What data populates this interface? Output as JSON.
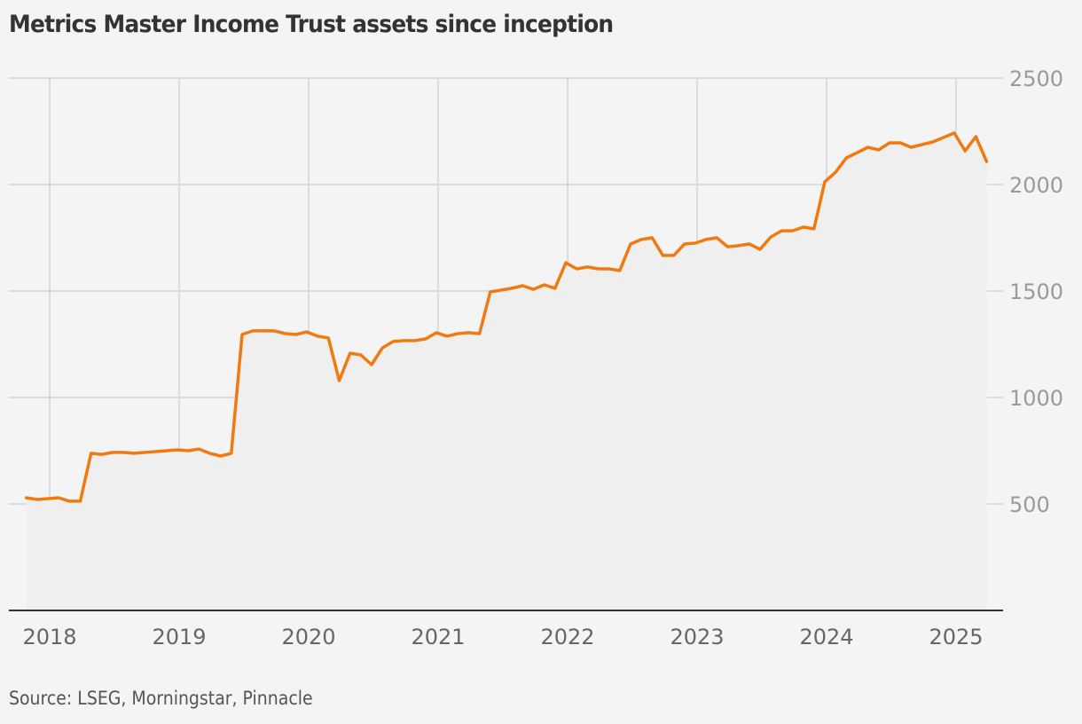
{
  "title": "Metrics Master Income Trust assets since inception",
  "source": "Source: LSEG, Morningstar, Pinnacle",
  "colors": {
    "line": "#f07a10",
    "background": "#f4f4f4",
    "area": "#efefef",
    "grid": "#dcdcdc",
    "axis": "#333333"
  },
  "chart_data": {
    "type": "line",
    "title": "Metrics Master Income Trust assets since inception",
    "xlabel": "",
    "ylabel": "",
    "ylim": [
      0,
      2500
    ],
    "yticks": [
      500,
      1000,
      1500,
      2000,
      2500
    ],
    "xticks": [
      "2018",
      "2019",
      "2020",
      "2021",
      "2022",
      "2023",
      "2024",
      "2025"
    ],
    "grid": true,
    "y_axis_position": "right",
    "area_fill": true,
    "series": [
      {
        "name": "Assets",
        "x": [
          "2017-11",
          "2017-12",
          "2018-01",
          "2018-02",
          "2018-03",
          "2018-04",
          "2018-05",
          "2018-06",
          "2018-07",
          "2018-08",
          "2018-09",
          "2018-10",
          "2018-11",
          "2018-12",
          "2019-01",
          "2019-02",
          "2019-03",
          "2019-04",
          "2019-05",
          "2019-06",
          "2019-07",
          "2019-08",
          "2019-09",
          "2019-10",
          "2019-11",
          "2019-12",
          "2020-01",
          "2020-02",
          "2020-03",
          "2020-04",
          "2020-05",
          "2020-06",
          "2020-07",
          "2020-08",
          "2020-09",
          "2020-10",
          "2020-11",
          "2020-12",
          "2021-01",
          "2021-02",
          "2021-03",
          "2021-04",
          "2021-05",
          "2021-06",
          "2021-07",
          "2021-08",
          "2021-09",
          "2021-10",
          "2021-11",
          "2021-12",
          "2022-01",
          "2022-02",
          "2022-03",
          "2022-04",
          "2022-05",
          "2022-06",
          "2022-07",
          "2022-08",
          "2022-09",
          "2022-10",
          "2022-11",
          "2022-12",
          "2023-01",
          "2023-02",
          "2023-03",
          "2023-04",
          "2023-05",
          "2023-06",
          "2023-07",
          "2023-08",
          "2023-09",
          "2023-10",
          "2023-11",
          "2023-12",
          "2024-01",
          "2024-02",
          "2024-03",
          "2024-04",
          "2024-05",
          "2024-06",
          "2024-07",
          "2024-08",
          "2024-09",
          "2024-10",
          "2024-11",
          "2024-12",
          "2025-01",
          "2025-02",
          "2025-03",
          "2025-04"
        ],
        "values": [
          529,
          521,
          525,
          529,
          513,
          513,
          738,
          733,
          742,
          742,
          738,
          742,
          746,
          750,
          754,
          750,
          758,
          738,
          725,
          738,
          1296,
          1313,
          1313,
          1313,
          1300,
          1296,
          1308,
          1288,
          1279,
          1079,
          1208,
          1200,
          1154,
          1233,
          1263,
          1267,
          1267,
          1275,
          1304,
          1288,
          1300,
          1304,
          1300,
          1496,
          1504,
          1513,
          1525,
          1508,
          1529,
          1513,
          1633,
          1604,
          1613,
          1604,
          1604,
          1596,
          1721,
          1742,
          1750,
          1667,
          1667,
          1721,
          1725,
          1742,
          1750,
          1708,
          1713,
          1721,
          1696,
          1754,
          1783,
          1783,
          1800,
          1792,
          2013,
          2058,
          2125,
          2150,
          2175,
          2163,
          2196,
          2196,
          2175,
          2188,
          2200,
          2221,
          2242,
          2158,
          2225,
          2108
        ],
        "color": "#f07a10"
      }
    ]
  }
}
